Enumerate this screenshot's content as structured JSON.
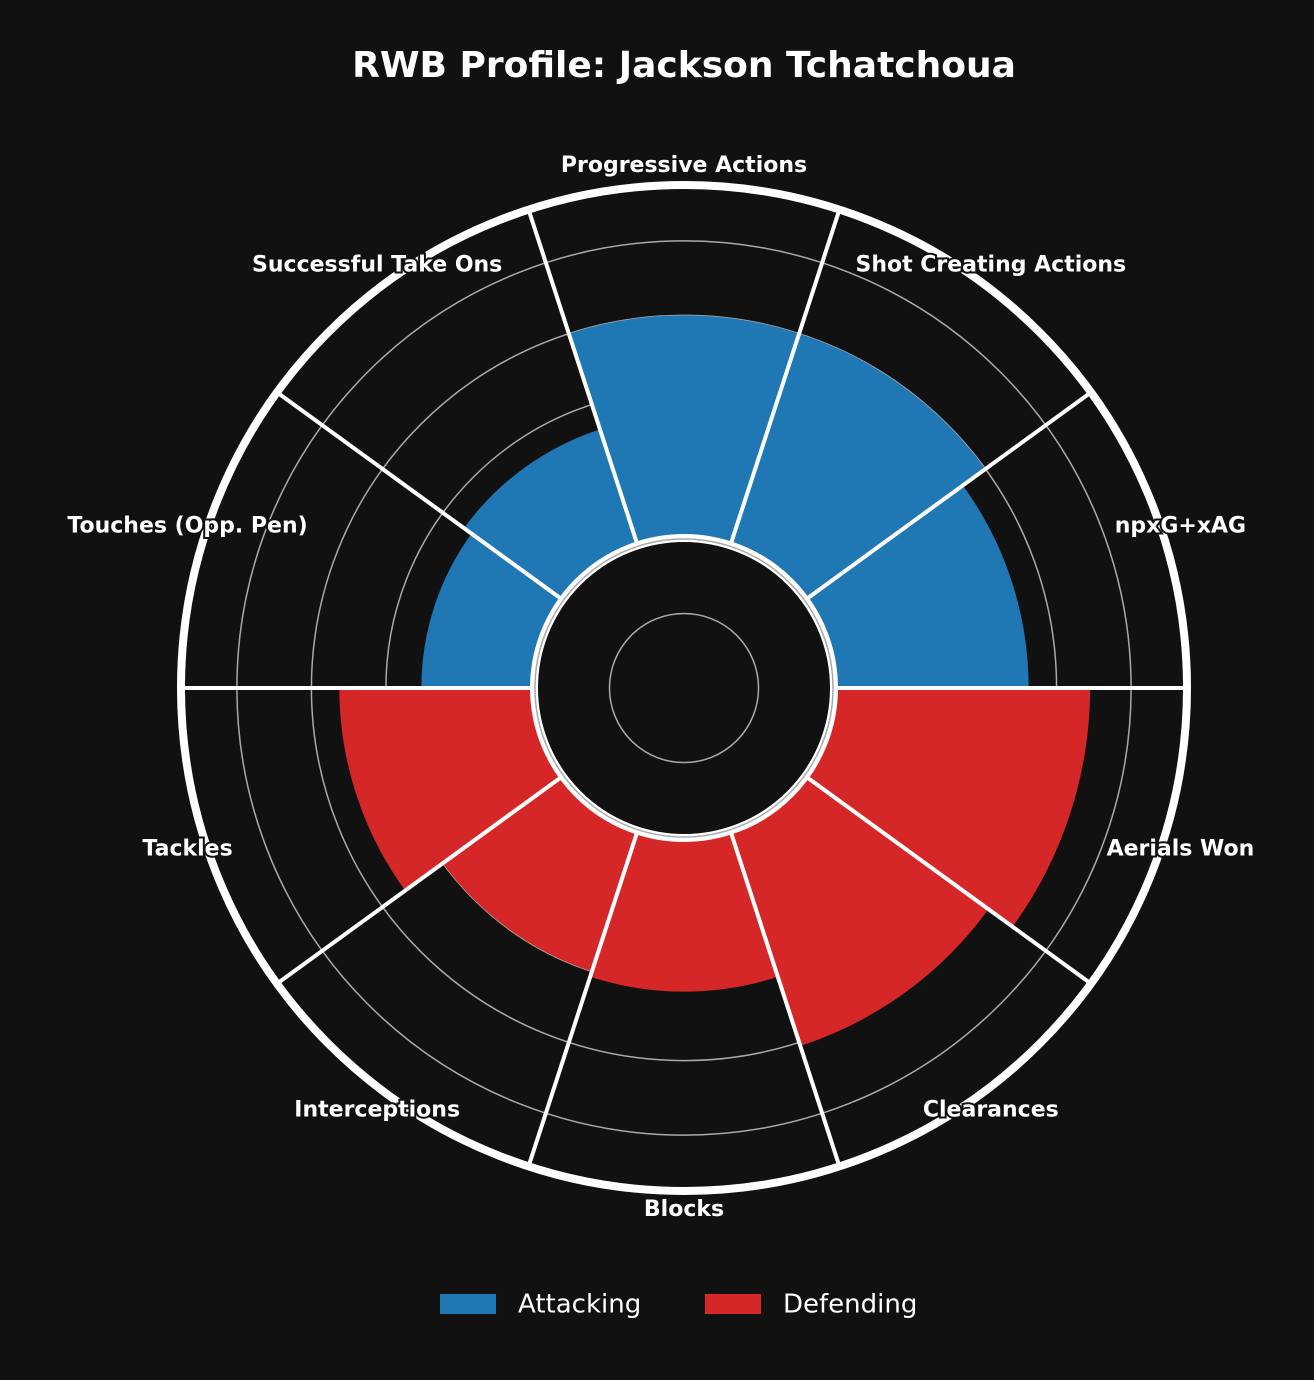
{
  "chart_data": {
    "type": "polar_bar",
    "title": "RWB Profile: Jackson Tchatchoua",
    "categories": [
      "npxG+xAG",
      "Shot Creating Actions",
      "Progressive Actions",
      "Successful Take Ons",
      "Touches (Opp. Pen)",
      "Tackles",
      "Interceptions",
      "Blocks",
      "Clearances",
      "Aerials Won"
    ],
    "series": [
      {
        "name": "Attacking",
        "color": "#1f77b4",
        "values": [
          92.5,
          100,
          100,
          73,
          70.5,
          null,
          null,
          null,
          null,
          null
        ]
      },
      {
        "name": "Defending",
        "color": "#d62728",
        "values": [
          null,
          null,
          null,
          null,
          null,
          92.5,
          80,
          81.5,
          101,
          109
        ]
      }
    ],
    "ylim": [
      0,
      135
    ],
    "yticks": [
      20,
      40,
      60,
      80,
      100,
      120
    ],
    "grid": true,
    "legend": "bottom"
  }
}
